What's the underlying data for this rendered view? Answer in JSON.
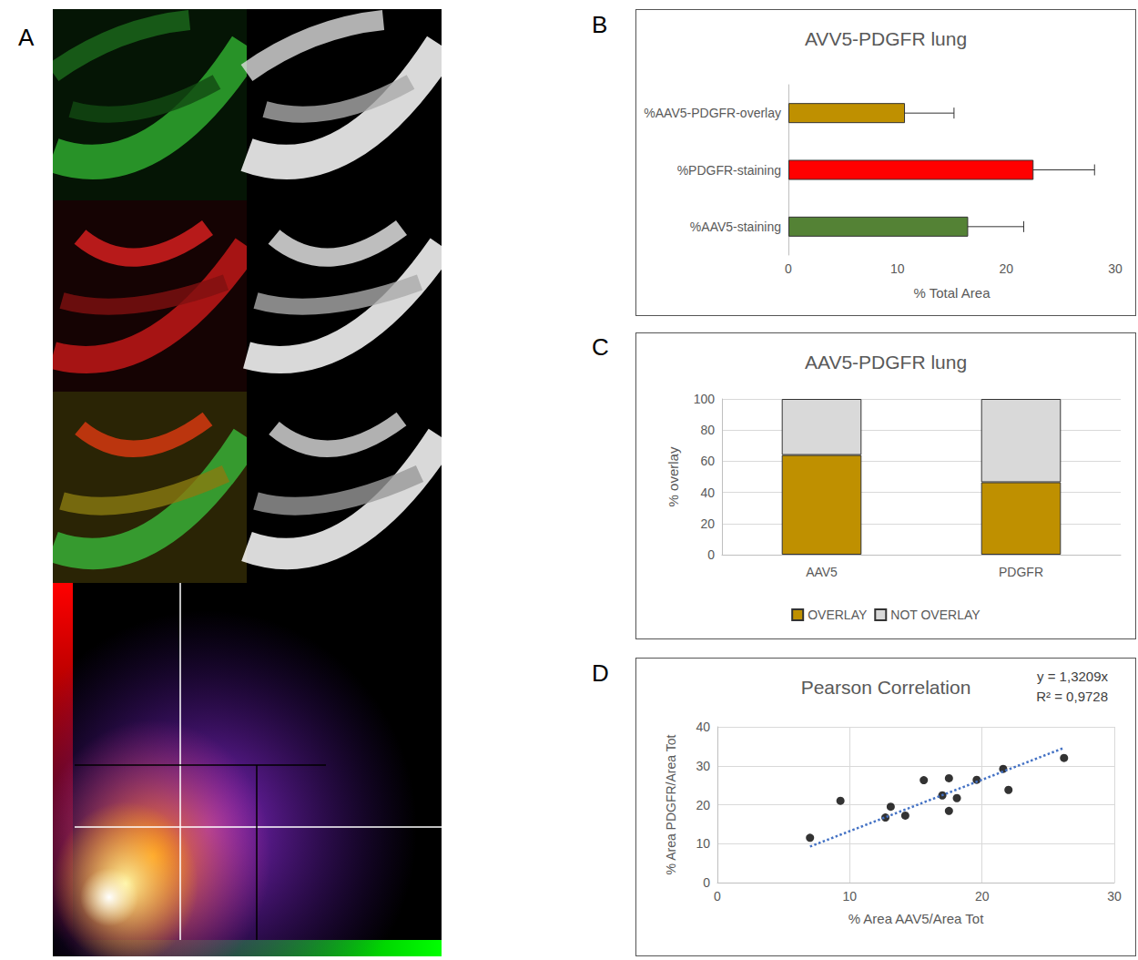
{
  "image_panel": {
    "panel_label": "A"
  },
  "chart_data": [
    {
      "panel_label": "B",
      "type": "bar",
      "orientation": "horizontal",
      "title": "AVV5-PDGFR lung",
      "categories": [
        "%AAV5-PDGFR-overlay",
        "%PDGFR-staining",
        "%AAV5-staining"
      ],
      "values": [
        10.7,
        22.5,
        16.5
      ],
      "errors": [
        4.5,
        5.6,
        5.1
      ],
      "colors": [
        "#bf9000",
        "#ff0000",
        "#548235"
      ],
      "xlabel": "% Total Area",
      "xlim": [
        0,
        30
      ],
      "xticks": [
        0,
        10,
        20,
        30
      ],
      "grid": false
    },
    {
      "panel_label": "C",
      "type": "bar",
      "stacked": true,
      "title": "AAV5-PDGFR lung",
      "categories": [
        "AAV5",
        "PDGFR"
      ],
      "series": [
        {
          "name": "OVERLAY",
          "color": "#bf9000",
          "values": [
            64,
            46.5
          ]
        },
        {
          "name": "NOT OVERLAY",
          "color": "#d9d9d9",
          "values": [
            36,
            53.5
          ]
        }
      ],
      "ylabel": "% overlay",
      "ylim": [
        0,
        100
      ],
      "yticks": [
        0,
        20,
        40,
        60,
        80,
        100
      ],
      "grid": true,
      "legend": "bottom"
    },
    {
      "panel_label": "D",
      "type": "scatter",
      "title": "Pearson Correlation",
      "annotations": [
        "y = 1,3209x",
        "R² = 0,9728"
      ],
      "x": [
        7,
        9.3,
        12.7,
        13.1,
        14.2,
        15.6,
        17,
        17.5,
        17.5,
        18.1,
        19.6,
        21.6,
        22,
        26.2
      ],
      "values": [
        11.5,
        21,
        16.7,
        19.5,
        17.2,
        26.3,
        22.4,
        18.4,
        26.8,
        21.7,
        26.4,
        29.2,
        23.8,
        32
      ],
      "color": "#000000",
      "marker": "circle",
      "trendline": {
        "x": [
          7,
          26.2
        ],
        "values": [
          9.25,
          34.6
        ],
        "color": "#4472c4",
        "line_style": "dotted"
      },
      "xlabel": "% Area AAV5/Area Tot",
      "ylabel": "% Area PDGFR/Area Tot",
      "xlim": [
        0,
        30
      ],
      "xticks": [
        0,
        10,
        20,
        30
      ],
      "ylim": [
        0,
        40
      ],
      "yticks": [
        0,
        10,
        20,
        30,
        40
      ],
      "grid": true
    }
  ]
}
